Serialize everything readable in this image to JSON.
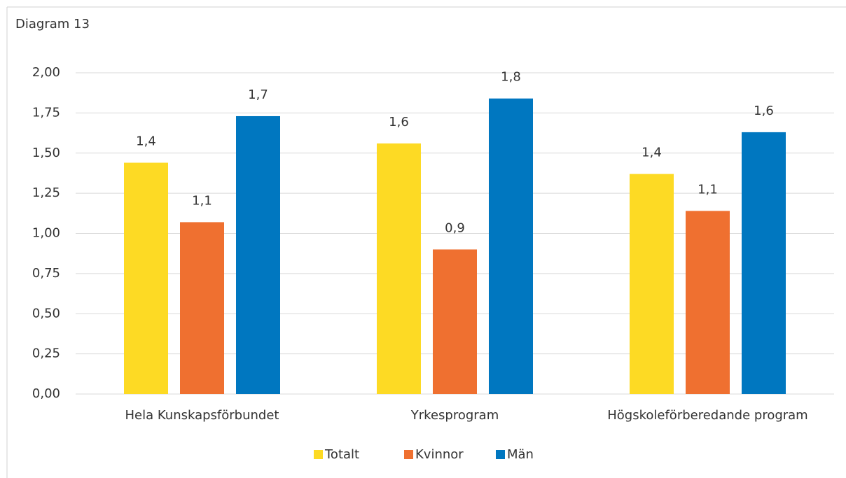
{
  "chart_data": {
    "type": "bar",
    "title": "Diagram 13",
    "categories": [
      "Hela Kunskapsförbundet",
      "Yrkesprogram",
      "Högskoleförberedande program"
    ],
    "series": [
      {
        "name": "Totalt",
        "color": "#fdda24",
        "values": [
          1.44,
          1.56,
          1.37
        ],
        "value_labels": [
          "1,4",
          "1,6",
          "1,4"
        ]
      },
      {
        "name": "Kvinnor",
        "color": "#ef7030",
        "values": [
          1.07,
          0.9,
          1.14
        ],
        "value_labels": [
          "1,1",
          "0,9",
          "1,1"
        ]
      },
      {
        "name": "Män",
        "color": "#0077c0",
        "values": [
          1.73,
          1.84,
          1.63
        ],
        "value_labels": [
          "1,7",
          "1,8",
          "1,6"
        ]
      }
    ],
    "ylim": [
      0,
      2
    ],
    "yticks": [
      {
        "value": 0,
        "label": "0,00"
      },
      {
        "value": 0.25,
        "label": "0,25"
      },
      {
        "value": 0.5,
        "label": "0,50"
      },
      {
        "value": 0.75,
        "label": "0,75"
      },
      {
        "value": 1,
        "label": "1,00"
      },
      {
        "value": 1.25,
        "label": "1,25"
      },
      {
        "value": 1.5,
        "label": "1,50"
      },
      {
        "value": 1.75,
        "label": "1,75"
      },
      {
        "value": 2,
        "label": "2,00"
      }
    ],
    "grid": true,
    "legend": "bottom"
  }
}
